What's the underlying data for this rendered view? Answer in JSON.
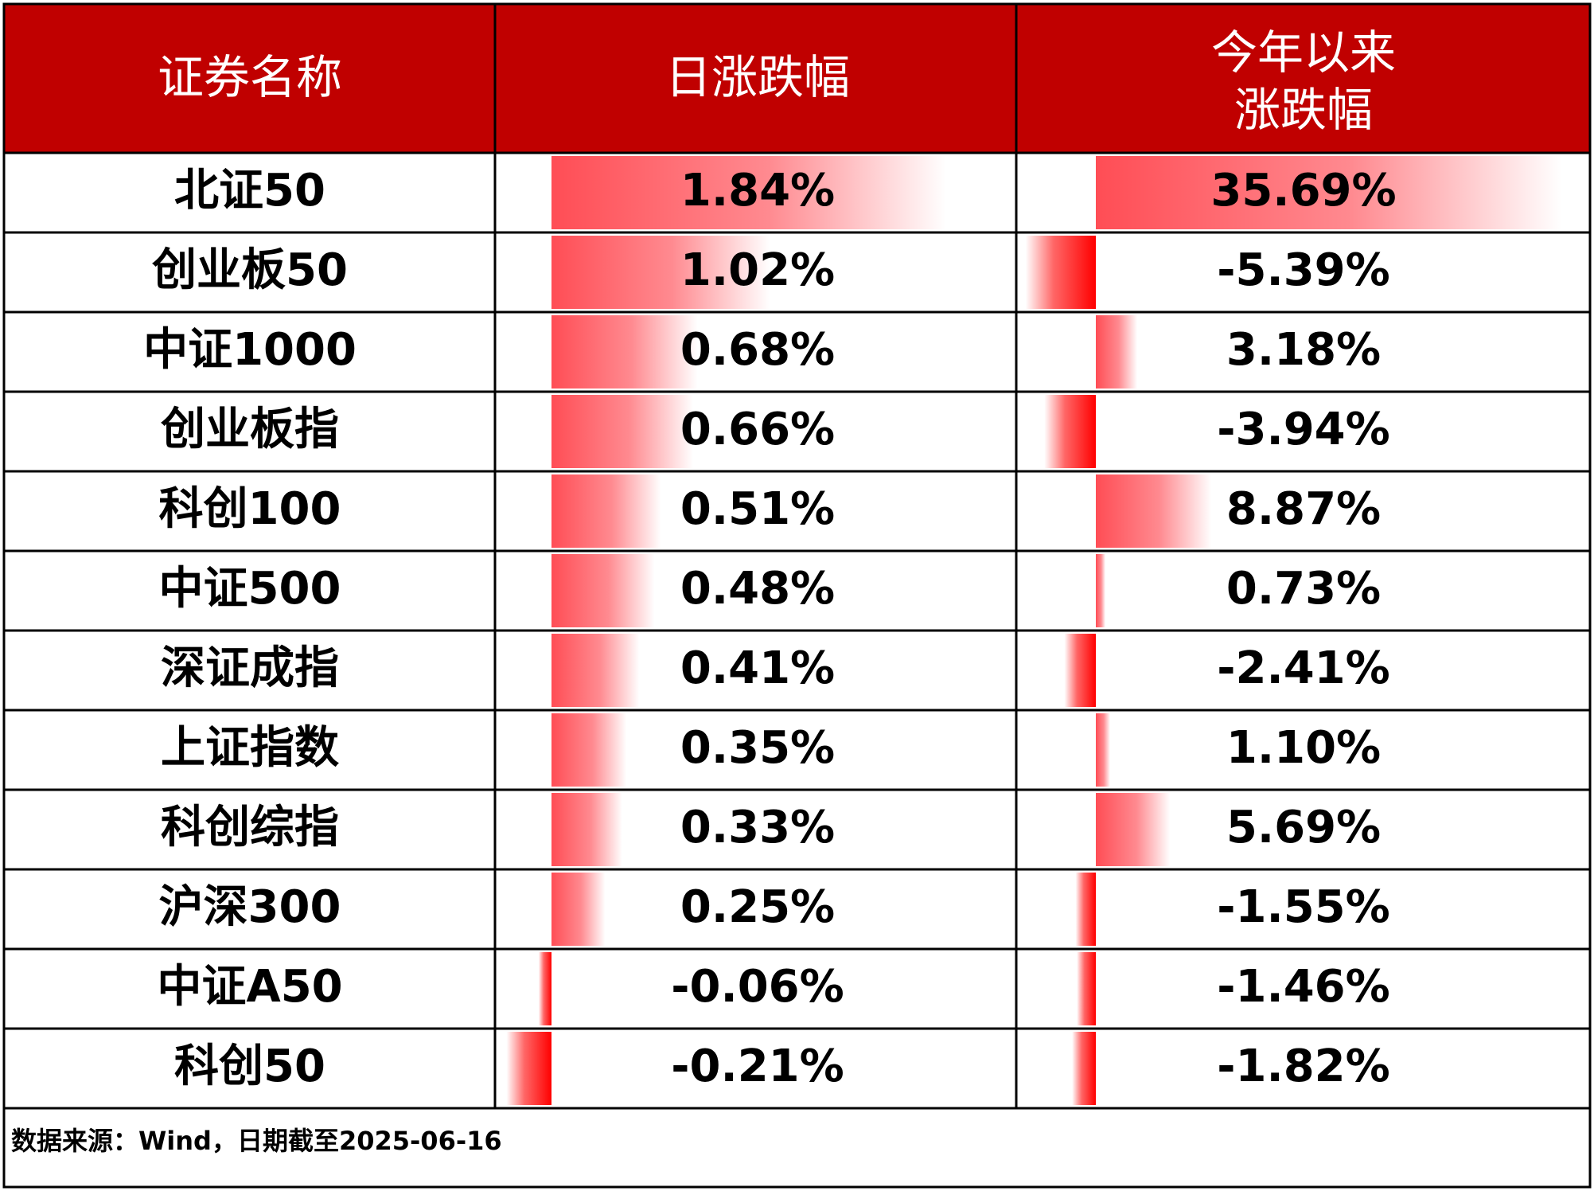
{
  "table": {
    "header": {
      "name": "证券名称",
      "daily": "日涨跌幅",
      "ytd_line1": "今年以来",
      "ytd_line2": "涨跌幅"
    },
    "footnote": "数据来源：Wind，日期截至2025-06-16"
  },
  "colors": {
    "header_bg": "#c00000",
    "header_text": "#ffffff",
    "bar_positive": "#ff4d55",
    "bar_negative": "#ff0000",
    "grid": "#000000"
  },
  "chart_data": {
    "type": "table",
    "columns": [
      "证券名称",
      "日涨跌幅",
      "今年以来涨跌幅"
    ],
    "rows": [
      {
        "name": "北证50",
        "daily": 1.84,
        "ytd": 35.69,
        "daily_label": "1.84%",
        "ytd_label": "35.69%"
      },
      {
        "name": "创业板50",
        "daily": 1.02,
        "ytd": -5.39,
        "daily_label": "1.02%",
        "ytd_label": "-5.39%"
      },
      {
        "name": "中证1000",
        "daily": 0.68,
        "ytd": 3.18,
        "daily_label": "0.68%",
        "ytd_label": "3.18%"
      },
      {
        "name": "创业板指",
        "daily": 0.66,
        "ytd": -3.94,
        "daily_label": "0.66%",
        "ytd_label": "-3.94%"
      },
      {
        "name": "科创100",
        "daily": 0.51,
        "ytd": 8.87,
        "daily_label": "0.51%",
        "ytd_label": "8.87%"
      },
      {
        "name": "中证500",
        "daily": 0.48,
        "ytd": 0.73,
        "daily_label": "0.48%",
        "ytd_label": "0.73%"
      },
      {
        "name": "深证成指",
        "daily": 0.41,
        "ytd": -2.41,
        "daily_label": "0.41%",
        "ytd_label": "-2.41%"
      },
      {
        "name": "上证指数",
        "daily": 0.35,
        "ytd": 1.1,
        "daily_label": "0.35%",
        "ytd_label": "1.10%"
      },
      {
        "name": "科创综指",
        "daily": 0.33,
        "ytd": 5.69,
        "daily_label": "0.33%",
        "ytd_label": "5.69%"
      },
      {
        "name": "沪深300",
        "daily": 0.25,
        "ytd": -1.55,
        "daily_label": "0.25%",
        "ytd_label": "-1.55%"
      },
      {
        "name": "中证A50",
        "daily": -0.06,
        "ytd": -1.46,
        "daily_label": "-0.06%",
        "ytd_label": "-1.46%"
      },
      {
        "name": "科创50",
        "daily": -0.21,
        "ytd": -1.82,
        "daily_label": "-0.21%",
        "ytd_label": "-1.82%"
      }
    ]
  }
}
